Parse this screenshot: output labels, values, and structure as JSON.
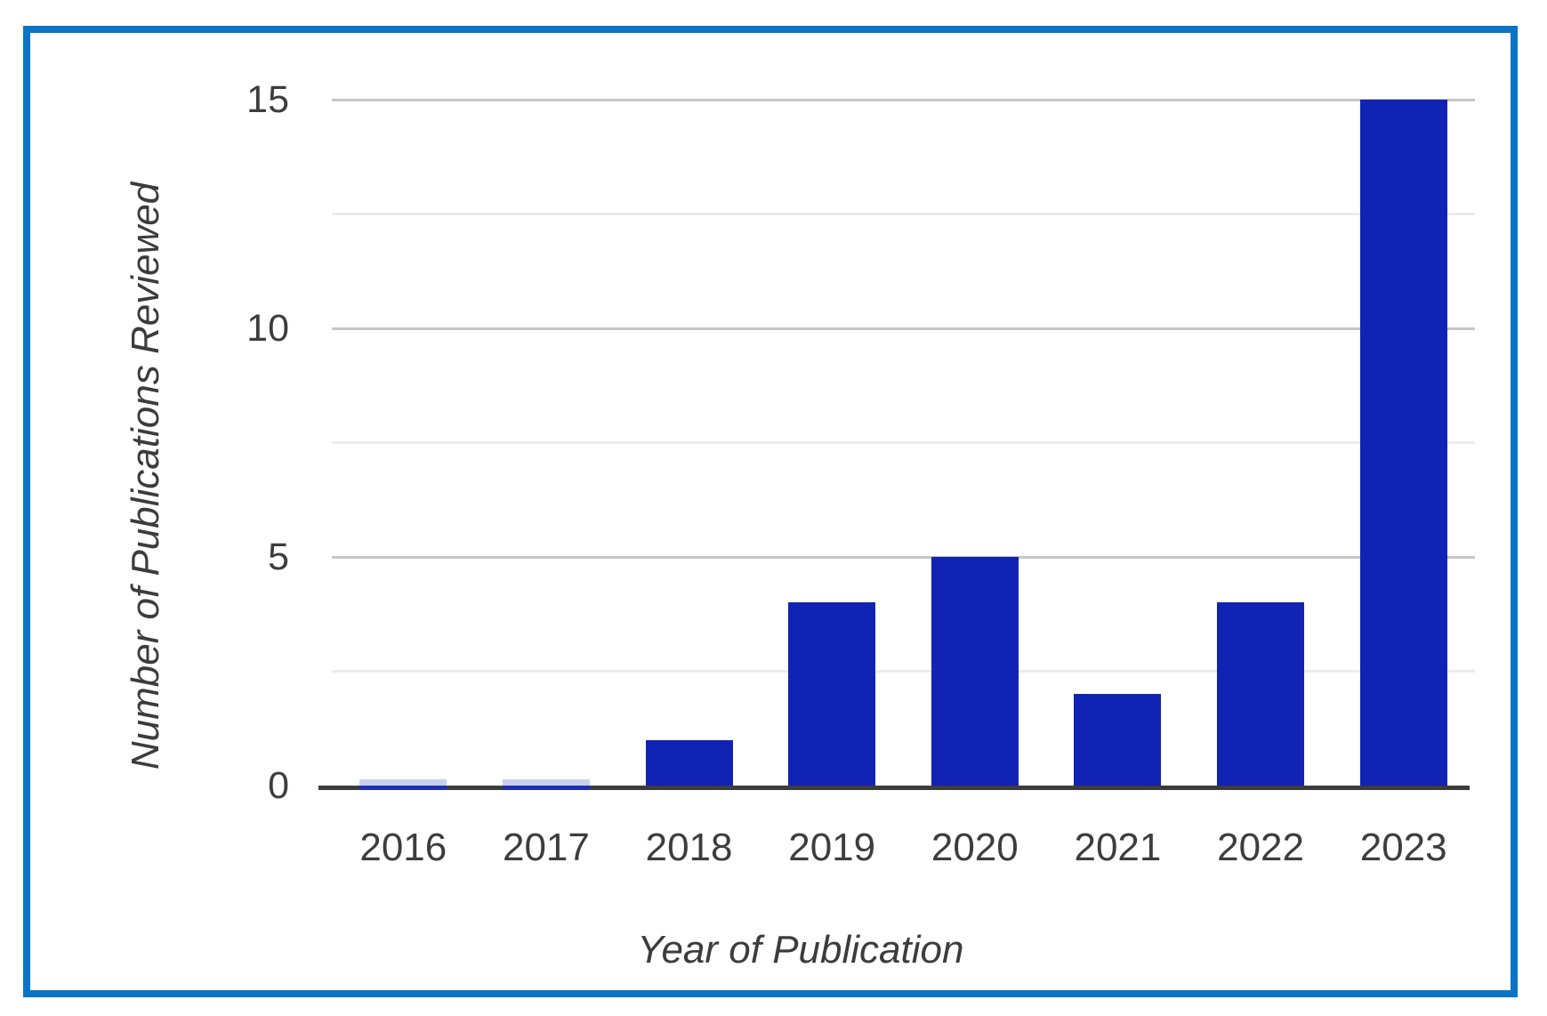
{
  "frame": {
    "border_color": "#0b74c4"
  },
  "chart_data": {
    "type": "bar",
    "title": "",
    "categories": [
      "2016",
      "2017",
      "2018",
      "2019",
      "2020",
      "2021",
      "2022",
      "2023"
    ],
    "values": [
      0,
      0,
      1,
      4,
      5,
      2,
      4,
      15
    ],
    "xlabel": "Year of Publication",
    "ylabel": "Number of Publications Reviewed",
    "ylim": [
      0,
      15
    ],
    "yticks": [
      0,
      5,
      10,
      15
    ],
    "ytick_labels": [
      "0",
      "5",
      "10",
      "15"
    ],
    "major_gridlines": [
      5,
      10,
      15
    ],
    "minor_gridlines": [
      2.5,
      7.5,
      12.5
    ],
    "grid": true,
    "legend": false,
    "bar_color": "#1123b4",
    "zero_sliver_color": "#c7d0ef",
    "zero_sliver_edge_color": "#202eb2",
    "axis_line_color": "#3c3c3c",
    "major_gridline_color": "#c6c6c6",
    "minor_gridline_color": "#ebebeb",
    "tick_label_color": "#3d3d3d",
    "zero_rendered_as_sliver": true
  }
}
